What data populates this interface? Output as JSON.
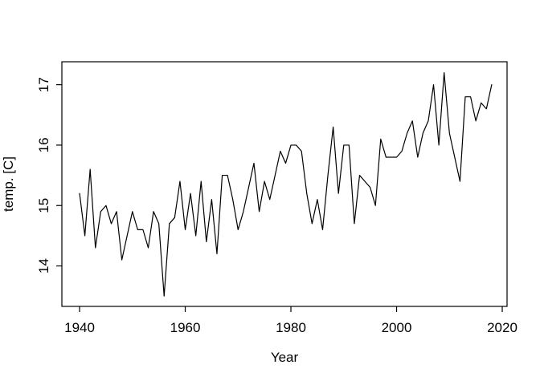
{
  "figure": {
    "background_color": "#ffffff",
    "frame_color": "#000000",
    "line_color": "#000000"
  },
  "chart_data": {
    "type": "line",
    "title": "",
    "xlabel": "Year",
    "ylabel": "temp. [C]",
    "x_ticks": [
      1940,
      1960,
      1980,
      2000,
      2020
    ],
    "y_ticks": [
      14,
      15,
      16,
      17
    ],
    "xlim": [
      1936.65,
      2020.91
    ],
    "ylim": [
      13.33,
      17.38
    ],
    "grid": false,
    "legend": false,
    "x": [
      1940,
      1941,
      1942,
      1943,
      1944,
      1945,
      1946,
      1947,
      1948,
      1949,
      1950,
      1951,
      1952,
      1953,
      1954,
      1955,
      1956,
      1957,
      1958,
      1959,
      1960,
      1961,
      1962,
      1963,
      1964,
      1965,
      1966,
      1967,
      1968,
      1969,
      1970,
      1971,
      1972,
      1973,
      1974,
      1975,
      1976,
      1977,
      1978,
      1979,
      1980,
      1981,
      1982,
      1983,
      1984,
      1985,
      1986,
      1987,
      1988,
      1989,
      1990,
      1991,
      1992,
      1993,
      1994,
      1995,
      1996,
      1997,
      1998,
      1999,
      2000,
      2001,
      2002,
      2003,
      2004,
      2005,
      2006,
      2007,
      2008,
      2009,
      2010,
      2011,
      2012,
      2013,
      2014,
      2015,
      2016,
      2017,
      2018
    ],
    "values": [
      15.2,
      14.5,
      15.6,
      14.3,
      14.9,
      15.0,
      14.7,
      14.9,
      14.1,
      14.5,
      14.9,
      14.6,
      14.6,
      14.3,
      14.9,
      14.7,
      13.5,
      14.7,
      14.8,
      15.4,
      14.6,
      15.2,
      14.5,
      15.4,
      14.4,
      15.1,
      14.2,
      15.5,
      15.5,
      15.1,
      14.6,
      14.9,
      15.3,
      15.7,
      14.9,
      15.4,
      15.1,
      15.5,
      15.9,
      15.7,
      16.0,
      16.0,
      15.9,
      15.2,
      14.7,
      15.1,
      14.6,
      15.5,
      16.3,
      15.2,
      16.0,
      16.0,
      14.7,
      15.5,
      15.4,
      15.3,
      15.0,
      16.1,
      15.8,
      15.8,
      15.8,
      15.9,
      16.2,
      16.4,
      15.8,
      16.2,
      16.4,
      17.0,
      16.0,
      17.2,
      16.2,
      15.8,
      15.4,
      16.8,
      16.8,
      16.4,
      16.7,
      16.6,
      17.0
    ]
  }
}
